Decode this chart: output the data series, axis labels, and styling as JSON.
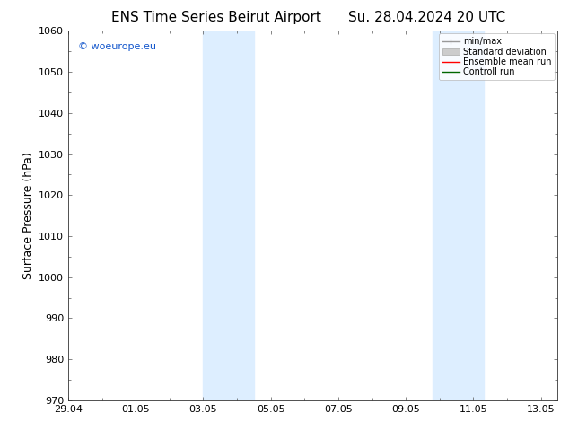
{
  "title_left": "ENS Time Series Beirut Airport",
  "title_right": "Su. 28.04.2024 20 UTC",
  "ylabel": "Surface Pressure (hPa)",
  "ylim": [
    970,
    1060
  ],
  "yticks": [
    970,
    980,
    990,
    1000,
    1010,
    1020,
    1030,
    1040,
    1050,
    1060
  ],
  "xlim_start": 0.0,
  "xlim_end": 14.5,
  "xtick_positions": [
    0,
    2,
    4,
    6,
    8,
    10,
    12,
    14
  ],
  "xtick_labels": [
    "29.04",
    "01.05",
    "03.05",
    "05.05",
    "07.05",
    "09.05",
    "11.05",
    "13.05"
  ],
  "shade_bands": [
    {
      "x_start": 4.0,
      "x_end": 5.5
    },
    {
      "x_start": 10.8,
      "x_end": 12.3
    }
  ],
  "shade_color": "#ddeeff",
  "watermark_text": "© woeurope.eu",
  "watermark_color": "#1155cc",
  "bg_color": "#ffffff",
  "legend_entries": [
    {
      "label": "min/max",
      "color": "#999999",
      "linewidth": 1.0
    },
    {
      "label": "Standard deviation",
      "color": "#cccccc",
      "linewidth": 6
    },
    {
      "label": "Ensemble mean run",
      "color": "#ff0000",
      "linewidth": 1.0
    },
    {
      "label": "Controll run",
      "color": "#006600",
      "linewidth": 1.0
    }
  ],
  "title_fontsize": 11,
  "tick_fontsize": 8,
  "ylabel_fontsize": 9,
  "watermark_fontsize": 8
}
